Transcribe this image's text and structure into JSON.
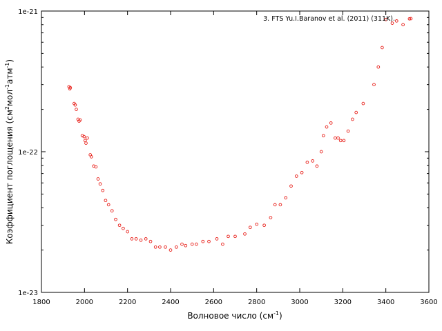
{
  "chart_data": {
    "type": "scatter",
    "title": "",
    "xlabel": "Волновое число (см",
    "xlabel_sup": "-1",
    "xlabel_end": ")",
    "ylabel_parts": [
      "Коэффициент поглощения (см",
      "2",
      "мол",
      "-1",
      "атм",
      "-1",
      ")"
    ],
    "xlim": [
      1800,
      3600
    ],
    "ylim": [
      1e-23,
      1e-21
    ],
    "yscale": "log",
    "grid": false,
    "legend_position": "top-right",
    "x_ticks": [
      1800,
      2000,
      2200,
      2400,
      2600,
      2800,
      3000,
      3200,
      3400,
      3600
    ],
    "y_ticks": [
      1e-23,
      1e-22,
      1e-21
    ],
    "y_tick_labels": [
      "1e-23",
      "1e-22",
      "1e-21"
    ],
    "series": [
      {
        "name": "3. FTS Yu.I.Baranov et al. (2011) (311K).",
        "color": "#e8201a",
        "marker": "circle",
        "x": [
          1928,
          1932,
          1934,
          1952,
          1957,
          1962,
          1970,
          1975,
          1980,
          1990,
          1998,
          2003,
          2007,
          2013,
          2027,
          2032,
          2043,
          2053,
          2063,
          2073,
          2085,
          2098,
          2112,
          2128,
          2145,
          2163,
          2180,
          2200,
          2220,
          2240,
          2262,
          2285,
          2307,
          2330,
          2350,
          2376,
          2400,
          2427,
          2453,
          2470,
          2500,
          2520,
          2550,
          2578,
          2615,
          2642,
          2668,
          2700,
          2745,
          2770,
          2800,
          2835,
          2865,
          2885,
          2910,
          2935,
          2960,
          2985,
          3010,
          3035,
          3060,
          3080,
          3100,
          3110,
          3125,
          3145,
          3165,
          3178,
          3190,
          3205,
          3225,
          3245,
          3262,
          3295,
          3345,
          3365,
          3383,
          3400,
          3430,
          3450,
          3480,
          3510
        ],
        "y": [
          2.9e-22,
          2.8e-22,
          2.85e-22,
          2.2e-22,
          2.15e-22,
          2e-22,
          1.7e-22,
          1.65e-22,
          1.68e-22,
          1.3e-22,
          1.28e-22,
          1.2e-22,
          1.15e-22,
          1.25e-22,
          9.5e-23,
          9.2e-23,
          7.9e-23,
          7.8e-23,
          6.4e-23,
          5.9e-23,
          5.3e-23,
          4.5e-23,
          4.2e-23,
          3.8e-23,
          3.3e-23,
          3e-23,
          2.85e-23,
          2.7e-23,
          2.4e-23,
          2.4e-23,
          2.35e-23,
          2.4e-23,
          2.3e-23,
          2.1e-23,
          2.1e-23,
          2.1e-23,
          2e-23,
          2.1e-23,
          2.2e-23,
          2.15e-23,
          2.2e-23,
          2.2e-23,
          2.3e-23,
          2.3e-23,
          2.4e-23,
          2.2e-23,
          2.5e-23,
          2.5e-23,
          2.6e-23,
          2.9e-23,
          3.05e-23,
          3e-23,
          3.4e-23,
          4.2e-23,
          4.2e-23,
          4.7e-23,
          5.7e-23,
          6.7e-23,
          7.1e-23,
          8.4e-23,
          8.6e-23,
          7.9e-23,
          1e-22,
          1.3e-22,
          1.5e-22,
          1.6e-22,
          1.25e-22,
          1.25e-22,
          1.2e-22,
          1.2e-22,
          1.4e-22,
          1.7e-22,
          1.9e-22,
          2.2e-22,
          3e-22,
          4e-22,
          5.5e-22,
          8.7e-22,
          8.2e-22,
          8.5e-22,
          8e-22,
          8.8e-22
        ]
      }
    ]
  }
}
